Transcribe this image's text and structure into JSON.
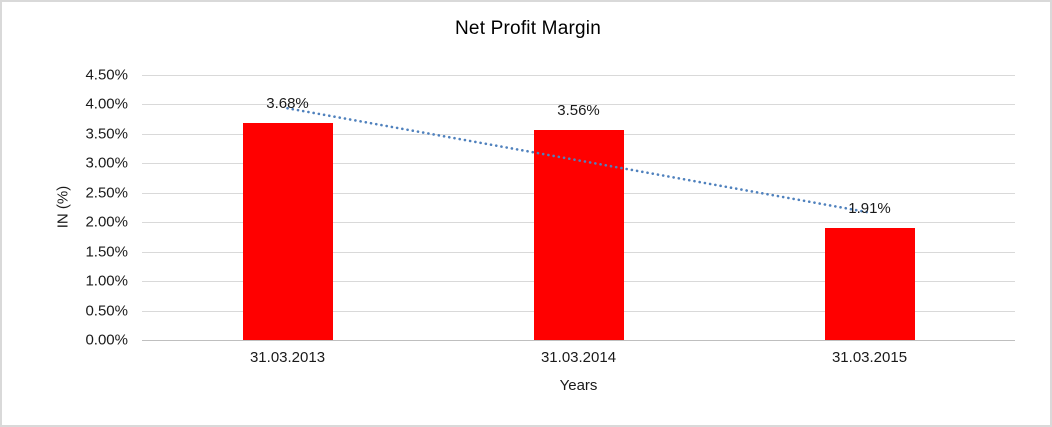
{
  "chart_data": {
    "type": "bar",
    "title": "Net Profit Margin",
    "xlabel": "Years",
    "ylabel": "IN (%)",
    "categories": [
      "31.03.2013",
      "31.03.2014",
      "31.03.2015"
    ],
    "values": [
      3.68,
      3.56,
      1.91
    ],
    "data_labels": [
      "3.68%",
      "3.56%",
      "1.91%"
    ],
    "y_ticks": [
      "0.00%",
      "0.50%",
      "1.00%",
      "1.50%",
      "2.00%",
      "2.50%",
      "3.00%",
      "3.50%",
      "4.00%",
      "4.50%"
    ],
    "ylim": [
      0,
      4.5
    ],
    "grid": true,
    "legend": "none",
    "trendline": {
      "type": "linear",
      "style": "dotted"
    },
    "colors": {
      "bar": "#ff0000",
      "trendline": "#4f81bd",
      "gridline": "#d9d9d9",
      "axis_line": "#bfbfbf",
      "text": "#1a1a1a",
      "border": "#d9d9d9",
      "background": "#ffffff"
    }
  }
}
